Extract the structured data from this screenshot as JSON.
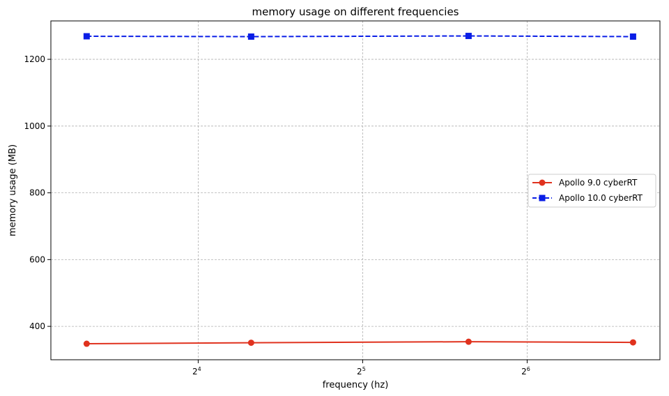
{
  "chart_data": {
    "type": "line",
    "title": "memory usage on different frequencies",
    "xlabel": "frequency (hz)",
    "ylabel": "memory usage (MB)",
    "xscale": "log2",
    "x": [
      10,
      20,
      50,
      100
    ],
    "xlim": [
      8.6,
      112
    ],
    "ylim": [
      300,
      1315
    ],
    "xticks": [
      {
        "value": 16,
        "base": "2",
        "exp": "4"
      },
      {
        "value": 32,
        "base": "2",
        "exp": "5"
      },
      {
        "value": 64,
        "base": "2",
        "exp": "6"
      }
    ],
    "yticks": [
      400,
      600,
      800,
      1000,
      1200
    ],
    "grid": true,
    "legend_position": "center-right",
    "series": [
      {
        "name": "Apollo 9.0 cyberRT",
        "values": [
          348,
          351,
          354,
          352
        ],
        "color": "#e0321e",
        "marker": "circle",
        "linestyle": "solid"
      },
      {
        "name": "Apollo 10.0 cyberRT",
        "values": [
          1269,
          1268,
          1270,
          1268
        ],
        "color": "#0a1ee6",
        "marker": "square",
        "linestyle": "dashed"
      }
    ]
  }
}
